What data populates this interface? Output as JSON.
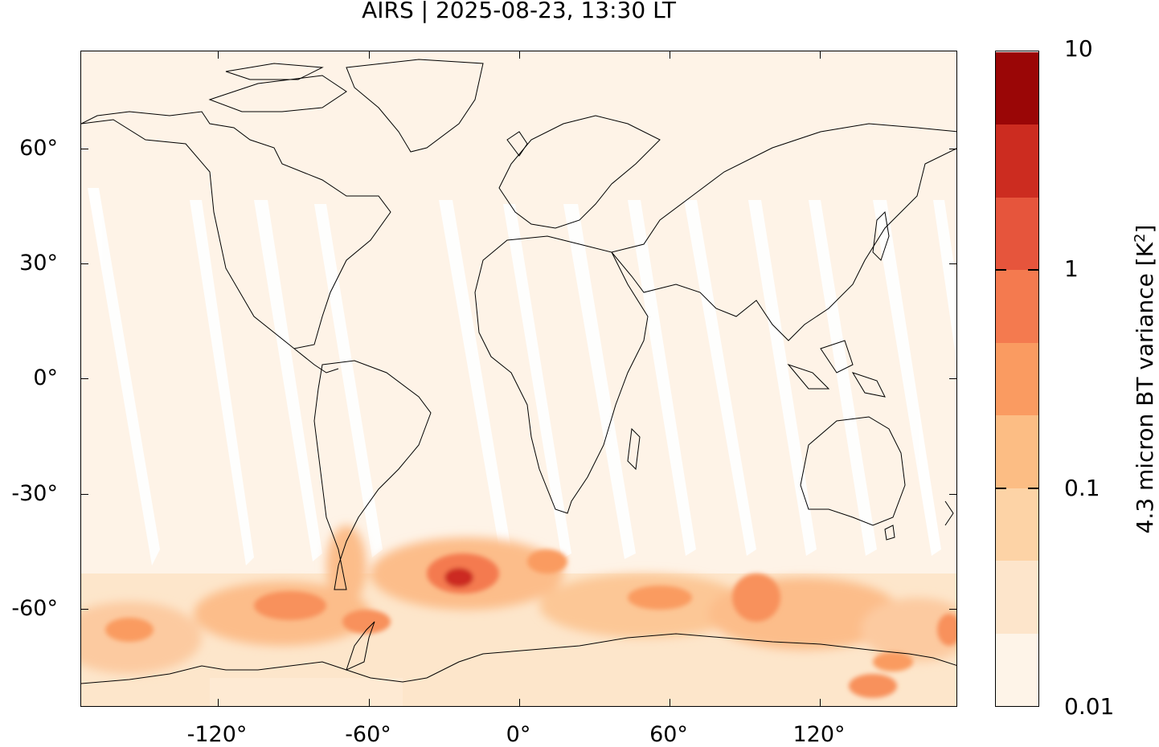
{
  "map": {
    "title": "AIRS | 2025-08-23, 13:30 LT",
    "x_tick_labels": [
      "-120°",
      "-60°",
      "0°",
      "60°",
      "120°"
    ],
    "y_tick_labels": [
      "60°",
      "30°",
      "0°",
      "-30°",
      "-60°"
    ],
    "colorbar": {
      "label_prefix": "4.3 micron BT variance [K",
      "label_sup": "2",
      "label_suffix": "]",
      "tick_labels": [
        "10",
        "1",
        "0.1",
        "0.01"
      ],
      "scale": "log",
      "range": [
        0.01,
        10
      ],
      "colors": [
        "#fef4e8",
        "#fde5cb",
        "#fdd3a6",
        "#fcbd84",
        "#fa9b61",
        "#f47a4f",
        "#e6553c",
        "#cc2c20",
        "#9a0606"
      ]
    },
    "colors": {
      "background_fill": "#fef3e7",
      "swath_gap": "#ffffff",
      "coastline": "#000000"
    }
  }
}
